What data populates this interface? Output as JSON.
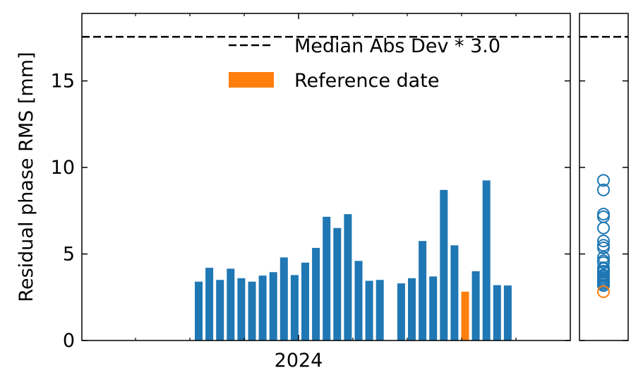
{
  "chart_data": [
    {
      "type": "bar",
      "ylabel": "Residual phase RMS [mm]",
      "xlabel": "",
      "ylim": [
        0,
        18.9
      ],
      "y_ticks": [
        0,
        5,
        10,
        15
      ],
      "x_tick_label": "2024",
      "threshold": {
        "value": 17.55,
        "label": "Median Abs Dev * 3.0",
        "style": "dashed",
        "color": "#000000"
      },
      "legend": {
        "placement": "top-right",
        "entries": [
          {
            "label": "Median Abs Dev * 3.0",
            "kind": "dashed-line",
            "color": "#000000"
          },
          {
            "label": "Reference date",
            "kind": "patch",
            "color": "#ff7f0e"
          }
        ]
      },
      "colors": {
        "bar": "#1f77b4",
        "reference": "#ff7f0e"
      },
      "values": [
        3.4,
        4.2,
        3.5,
        4.15,
        3.6,
        3.4,
        3.75,
        3.95,
        4.8,
        3.78,
        4.5,
        5.35,
        7.15,
        6.5,
        7.3,
        4.6,
        3.45,
        3.5,
        null,
        3.3,
        3.6,
        5.75,
        3.7,
        8.7,
        5.5,
        2.82,
        4.0,
        9.25,
        3.2,
        3.18
      ],
      "reference_index": 25,
      "grid": false
    },
    {
      "type": "scatter",
      "ylim": [
        0,
        18.9
      ],
      "threshold": {
        "value": 17.55
      },
      "marker": "open-circle",
      "colors": {
        "point": "#1f77b4",
        "reference": "#ff7f0e"
      },
      "points": [
        9.25,
        8.7,
        7.3,
        7.15,
        6.5,
        5.75,
        5.5,
        5.35,
        4.8,
        4.6,
        4.5,
        4.2,
        4.15,
        4.0,
        3.95,
        3.78,
        3.75,
        3.7,
        3.6,
        3.6,
        3.5,
        3.5,
        3.45,
        3.4,
        3.4,
        3.3,
        3.2,
        3.18
      ],
      "reference_point": 2.82
    }
  ]
}
